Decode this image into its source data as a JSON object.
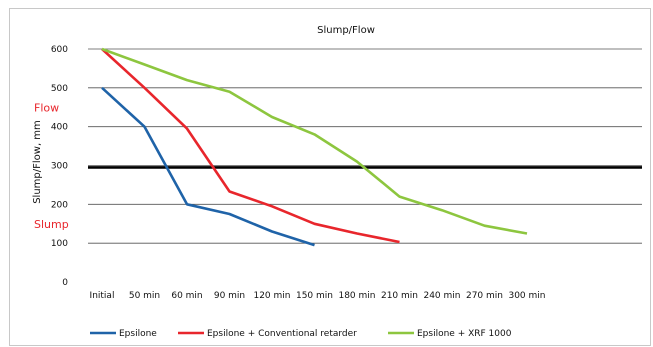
{
  "chart_data": {
    "type": "line",
    "title": "Slump/Flow",
    "ylabel": "Slump/Flow, mm",
    "xlabel": "",
    "categories": [
      "Initial",
      "50 min",
      "60 min",
      "90 min",
      "120 min",
      "150 min",
      "180 min",
      "210 min",
      "240 min",
      "270 min",
      "300 min"
    ],
    "ylim": [
      0,
      600
    ],
    "y_ticks": [
      0,
      100,
      200,
      300,
      400,
      500,
      600
    ],
    "grid": true,
    "legend": "bottom",
    "series": [
      {
        "name": "Epsilone",
        "color": "#1f63a8",
        "values": [
          500,
          400,
          200,
          175,
          130,
          95,
          null,
          null,
          null,
          null,
          null
        ]
      },
      {
        "name": "Epsilone + Conventional retarder",
        "color": "#e8262c",
        "values": [
          600,
          500,
          395,
          233,
          195,
          150,
          125,
          103,
          null,
          null,
          null
        ]
      },
      {
        "name": "Epsilone + XRF 1000",
        "color": "#8dc63f",
        "values": [
          600,
          560,
          520,
          490,
          425,
          380,
          310,
          220,
          185,
          145,
          125
        ]
      }
    ],
    "reference_line": {
      "value": 295,
      "color": "#000000"
    },
    "annotations": [
      {
        "text": "Flow",
        "color": "#e8262c",
        "y": 450
      },
      {
        "text": "Slump",
        "color": "#e8262c",
        "y": 150
      }
    ]
  }
}
